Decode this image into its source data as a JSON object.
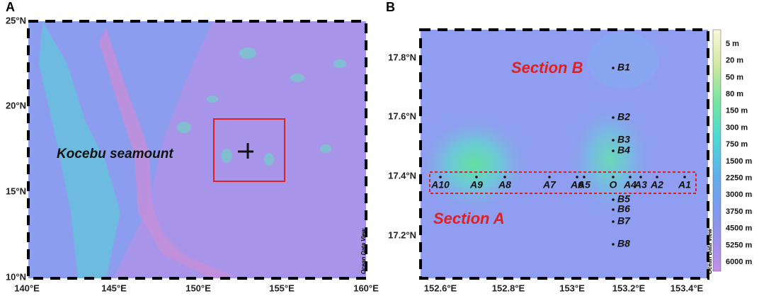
{
  "panel_a": {
    "label": "A",
    "annotation": "Kocebu seamount",
    "credit": "Ocean Data View",
    "xticks": [
      "140°E",
      "145°E",
      "150°E",
      "155°E",
      "160°E"
    ],
    "yticks": [
      "25°N",
      "20°N",
      "15°N",
      "10°N"
    ]
  },
  "panel_b": {
    "label": "B",
    "section_a": "Section A",
    "section_b": "Section B",
    "credit": "Ocean Data View",
    "xticks": [
      "152.6°E",
      "152.8°E",
      "153°E",
      "153.2°E",
      "153.4°E"
    ],
    "yticks": [
      "17.8°N",
      "17.6°N",
      "17.4°N",
      "17.2°N"
    ],
    "stations_b": [
      "B1",
      "B2",
      "B3",
      "B4",
      "B5",
      "B6",
      "B7",
      "B8"
    ],
    "stations_a": [
      "A10",
      "A9",
      "A8",
      "A7",
      "A6",
      "A5",
      "O",
      "A4",
      "A3",
      "A2",
      "A1"
    ],
    "colorbar": [
      "5 m",
      "20 m",
      "50 m",
      "80 m",
      "150 m",
      "300 m",
      "750 m",
      "1500 m",
      "2250 m",
      "3000 m",
      "3750 m",
      "4500 m",
      "5250 m",
      "6000 m"
    ]
  }
}
